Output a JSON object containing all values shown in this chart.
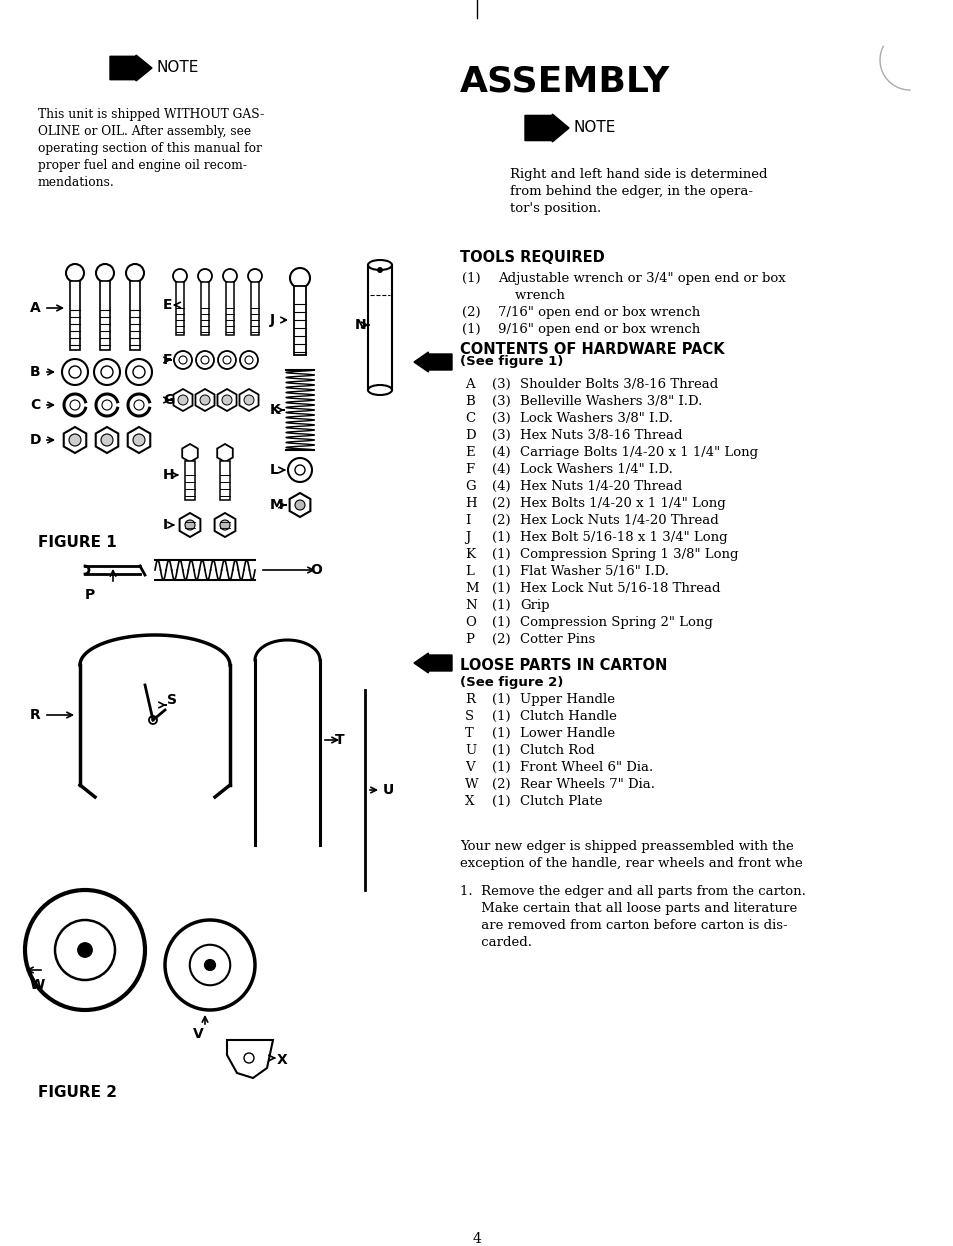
{
  "bg_color": "#ffffff",
  "title": "ASSEMBLY",
  "left_note_text": [
    "This unit is shipped WITHOUT GAS-",
    "OLINE or OIL. After assembly, see",
    "operating section of this manual for",
    "proper fuel and engine oil recom-",
    "mendations."
  ],
  "right_note_text": [
    "Right and left hand side is determined",
    "from behind the edger, in the opera-",
    "tor's position."
  ],
  "tools_required_title": "TOOLS REQUIRED",
  "hardware_title": "CONTENTS OF HARDWARE PACK",
  "hardware_subtitle": "(See figure 1)",
  "hardware_items": [
    [
      "A",
      "(3)",
      "Shoulder Bolts 3/8-16 Thread"
    ],
    [
      "B",
      "(3)",
      "Belleville Washers 3/8\" I.D."
    ],
    [
      "C",
      "(3)",
      "Lock Washers 3/8\" I.D."
    ],
    [
      "D",
      "(3)",
      "Hex Nuts 3/8-16 Thread"
    ],
    [
      "E",
      "(4)",
      "Carriage Bolts 1/4-20 x 1 1/4\" Long"
    ],
    [
      "F",
      "(4)",
      "Lock Washers 1/4\" I.D."
    ],
    [
      "G",
      "(4)",
      "Hex Nuts 1/4-20 Thread"
    ],
    [
      "H",
      "(2)",
      "Hex Bolts 1/4-20 x 1 1/4\" Long"
    ],
    [
      "I",
      "(2)",
      "Hex Lock Nuts 1/4-20 Thread"
    ],
    [
      "J",
      "(1)",
      "Hex Bolt 5/16-18 x 1 3/4\" Long"
    ],
    [
      "K",
      "(1)",
      "Compression Spring 1 3/8\" Long"
    ],
    [
      "L",
      "(1)",
      "Flat Washer 5/16\" I.D."
    ],
    [
      "M",
      "(1)",
      "Hex Lock Nut 5/16-18 Thread"
    ],
    [
      "N",
      "(1)",
      "Grip"
    ],
    [
      "O",
      "(1)",
      "Compression Spring 2\" Long"
    ],
    [
      "P",
      "(2)",
      "Cotter Pins"
    ]
  ],
  "loose_parts_title": "LOOSE PARTS IN CARTON",
  "loose_parts_subtitle": "(See figure 2)",
  "loose_items": [
    [
      "R",
      "(1)",
      "Upper Handle"
    ],
    [
      "S",
      "(1)",
      "Clutch Handle"
    ],
    [
      "T",
      "(1)",
      "Lower Handle"
    ],
    [
      "U",
      "(1)",
      "Clutch Rod"
    ],
    [
      "V",
      "(1)",
      "Front Wheel 6\" Dia."
    ],
    [
      "W",
      "(2)",
      "Rear Wheels 7\" Dia."
    ],
    [
      "X",
      "(1)",
      "Clutch Plate"
    ]
  ],
  "figure1_label": "FIGURE 1",
  "figure2_label": "FIGURE 2",
  "page_number": "4"
}
